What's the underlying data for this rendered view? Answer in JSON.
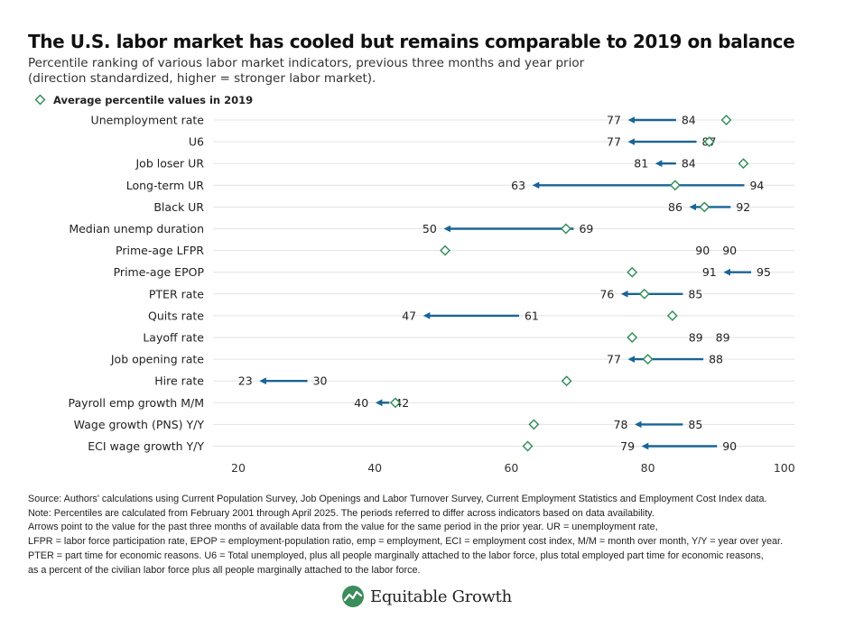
{
  "title": "The U.S. labor market has cooled but remains comparable to 2019 on balance",
  "subtitle_lines": [
    "Percentile ranking of various labor market indicators, previous three months and year prior",
    "(direction standardized, higher = stronger labor market)."
  ],
  "footnotes": [
    "Source: Authors' calculations using Current Population Survey, Job Openings and Labor Turnover Survey, Current Employment Statistics and Employment Cost Index data.",
    "Note: Percentiles are calculated from February 2001 through April 2025. The periods referred to differ across indicators based on data availability.",
    "Arrows point to the value for the past three months of available data from the value for the same period in the prior year. UR = unemployment rate,",
    "LFPR = labor force participation rate, EPOP = employment-population ratio, emp = employment, ECI = employment cost index, M/M = month over month, Y/Y = year over year.",
    "PTER = part time for economic reasons. U6 = Total unemployed, plus all people marginally attached to the labor force, plus total employed part time for economic reasons,",
    "as a percent of the civilian labor force plus all people marginally attached to the labor force."
  ],
  "brand": {
    "name": "Equitable Growth",
    "logo_icon": "equitable-growth-logo-icon",
    "logo_color": "#3d8c5c"
  },
  "chart_data": {
    "type": "arrow-dot",
    "xlim": [
      15,
      102
    ],
    "x_ticks": [
      20,
      40,
      60,
      80,
      100
    ],
    "grid": "horizontal",
    "legend": {
      "position": "top-left",
      "marker": "diamond",
      "label": "Average percentile values in 2019"
    },
    "colors": {
      "arrow": "#1a6496",
      "marker": "#2e8b57",
      "grid": "#e3e3e3",
      "text": "#222222"
    },
    "rows": [
      {
        "label": "Unemployment rate",
        "prior": 84,
        "recent": 77,
        "avg2019": 91.5
      },
      {
        "label": "U6",
        "prior": 87,
        "recent": 77,
        "avg2019": 89.0
      },
      {
        "label": "Job loser UR",
        "prior": 84,
        "recent": 81,
        "avg2019": 94.0
      },
      {
        "label": "Long-term UR",
        "prior": 94,
        "recent": 63,
        "avg2019": 84.0
      },
      {
        "label": "Black UR",
        "prior": 92,
        "recent": 86,
        "avg2019": 88.3
      },
      {
        "label": "Median unemp duration",
        "prior": 69,
        "recent": 50,
        "avg2019": 68.0
      },
      {
        "label": "Prime-age LFPR",
        "prior": 90,
        "recent": 90,
        "avg2019": 50.3
      },
      {
        "label": "Prime-age EPOP",
        "prior": 95,
        "recent": 91,
        "avg2019": 77.7
      },
      {
        "label": "PTER rate",
        "prior": 85,
        "recent": 76,
        "avg2019": 79.5
      },
      {
        "label": "Quits rate",
        "prior": 61,
        "recent": 47,
        "avg2019": 83.6
      },
      {
        "label": "Layoff rate",
        "prior": 89,
        "recent": 89,
        "avg2019": 77.7
      },
      {
        "label": "Job opening rate",
        "prior": 88,
        "recent": 77,
        "avg2019": 80.0
      },
      {
        "label": "Hire rate",
        "prior": 30,
        "recent": 23,
        "avg2019": 68.1
      },
      {
        "label": "Payroll emp growth M/M",
        "prior": 42,
        "recent": 40,
        "avg2019": 43.0
      },
      {
        "label": "Wage growth (PNS) Y/Y",
        "prior": 85,
        "recent": 78,
        "avg2019": 63.3
      },
      {
        "label": "ECI wage growth Y/Y",
        "prior": 90,
        "recent": 79,
        "avg2019": 62.4
      }
    ]
  }
}
